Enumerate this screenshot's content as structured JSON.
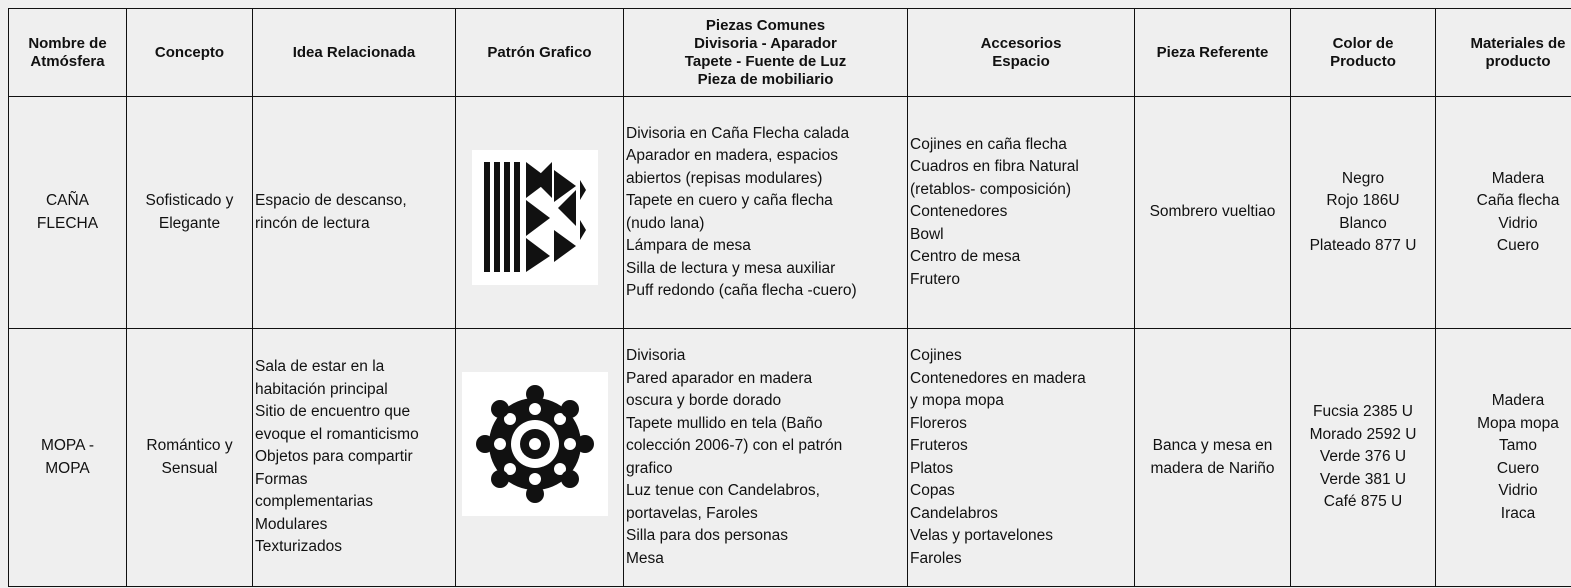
{
  "table": {
    "headers": [
      [
        "Nombre de",
        "Atmósfera"
      ],
      [
        "Concepto"
      ],
      [
        "Idea Relacionada"
      ],
      [
        "Patrón Grafico"
      ],
      [
        "Piezas Comunes",
        "Divisoria - Aparador",
        "Tapete - Fuente de Luz",
        "Pieza de mobiliario"
      ],
      [
        "Accesorios",
        "Espacio"
      ],
      [
        "Pieza Referente"
      ],
      [
        "Color de",
        "Producto"
      ],
      [
        "Materiales de",
        "producto"
      ]
    ],
    "rows": [
      {
        "nombre": [
          "CAÑA",
          "FLECHA"
        ],
        "concepto": [
          "Sofisticado y",
          "Elegante"
        ],
        "idea": [
          "Espacio de descanso,",
          "rincón de lectura"
        ],
        "piezas": [
          "Divisoria en Caña Flecha calada",
          "Aparador en madera, espacios",
          "abiertos (repisas modulares)",
          "Tapete en cuero y caña flecha",
          "(nudo lana)",
          "Lámpara de mesa",
          "Silla de lectura y mesa auxiliar",
          "Puff redondo (caña flecha -cuero)"
        ],
        "accesorios": [
          "Cojines en caña flecha",
          "Cuadros en fibra Natural",
          "(retablos- composición)",
          "Contenedores",
          "Bowl",
          "Centro de mesa",
          "Frutero"
        ],
        "referente": [
          "Sombrero vueltiao"
        ],
        "color": [
          "Negro",
          "Rojo 186U",
          "Blanco",
          "Plateado 877 U"
        ],
        "materiales": [
          "Madera",
          "Caña flecha",
          "Vidrio",
          "Cuero"
        ]
      },
      {
        "nombre": [
          "MOPA -",
          "MOPA"
        ],
        "concepto": [
          "Romántico y",
          "Sensual"
        ],
        "idea": [
          "Sala de estar en la",
          "habitación principal",
          "Sitio de encuentro que",
          "evoque el romanticismo",
          "Objetos para compartir",
          "Formas",
          "complementarias",
          "Modulares",
          "Texturizados"
        ],
        "piezas": [
          "Divisoria",
          "Pared aparador en madera",
          "oscura y borde dorado",
          "Tapete mullido en tela (Baño",
          "colección 2006-7) con el patrón",
          "grafico",
          "Luz tenue con Candelabros,",
          "portavelas, Faroles",
          "Silla para dos personas",
          "Mesa"
        ],
        "accesorios": [
          "Cojines",
          "Contenedores en madera",
          "y mopa mopa",
          "Floreros",
          "Fruteros",
          "Platos",
          "Copas",
          "Candelabros",
          "Velas y portavelones",
          "Faroles"
        ],
        "referente": [
          "Banca y mesa en",
          "madera de Nariño"
        ],
        "color": [
          "Fucsia 2385 U",
          "Morado 2592 U",
          "Verde 376 U",
          "Verde 381 U",
          "Café 875 U"
        ],
        "materiales": [
          "Madera",
          "Mopa mopa",
          "Tamo",
          "Cuero",
          "Vidrio",
          "Iraca"
        ]
      }
    ]
  }
}
